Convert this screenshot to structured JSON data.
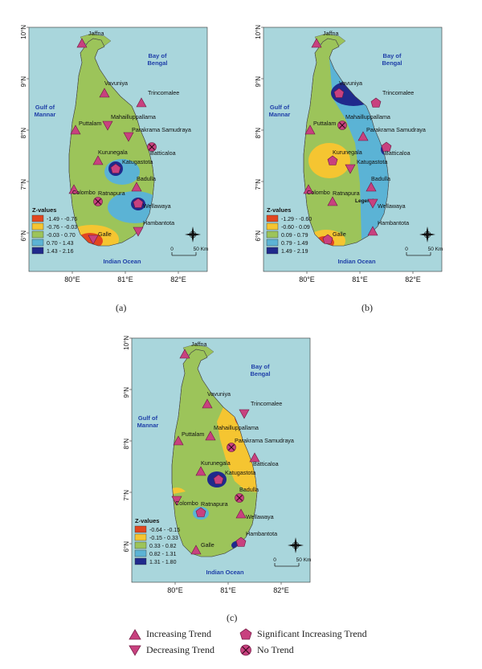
{
  "maps": [
    {
      "id": "a",
      "caption": "(a)",
      "lat_labels": [
        "10°N",
        "9°N",
        "8°N",
        "7°N",
        "6°N"
      ],
      "lon_labels": [
        "80°E",
        "81°E",
        "82°E"
      ],
      "legend_title": "Z-values",
      "legend": [
        {
          "label": "-1.49 - -0.76",
          "color": "#e2461f"
        },
        {
          "label": "-0.76 - -0.03",
          "color": "#f5c531"
        },
        {
          "label": "-0.03 - 0.70",
          "color": "#9cc45a"
        },
        {
          "label": "0.70 - 1.43",
          "color": "#5bb3d5"
        },
        {
          "label": "1.43 - 2.16",
          "color": "#202a8c"
        }
      ],
      "stations": [
        {
          "name": "Jaffna",
          "symbol": "increasing"
        },
        {
          "name": "Vavuniya",
          "symbol": "increasing"
        },
        {
          "name": "Trincomalee",
          "symbol": "increasing"
        },
        {
          "name": "Puttalam",
          "symbol": "increasing"
        },
        {
          "name": "Mahailluppallama",
          "symbol": "decreasing"
        },
        {
          "name": "Parakrama Samudraya",
          "symbol": "decreasing"
        },
        {
          "name": "Batticaloa",
          "symbol": "notrend"
        },
        {
          "name": "Kurunegala",
          "symbol": "increasing"
        },
        {
          "name": "Katugastota",
          "symbol": "sig_increasing"
        },
        {
          "name": "Colombo",
          "symbol": "increasing"
        },
        {
          "name": "Badulla",
          "symbol": "increasing"
        },
        {
          "name": "Ratnapura",
          "symbol": "notrend"
        },
        {
          "name": "Wellawaya",
          "symbol": "sig_increasing"
        },
        {
          "name": "Galle",
          "symbol": "decreasing"
        },
        {
          "name": "Hambantota",
          "symbol": "decreasing"
        }
      ]
    },
    {
      "id": "b",
      "caption": "(b)",
      "lat_labels": [
        "10°N",
        "9°N",
        "8°N",
        "7°N",
        "6°N"
      ],
      "lon_labels": [
        "80°E",
        "81°E",
        "82°E"
      ],
      "legend_title": "Z-values",
      "extra_label": "Legend",
      "legend": [
        {
          "label": "-1.29 - -0.60",
          "color": "#e2461f"
        },
        {
          "label": "-0.60 - 0.09",
          "color": "#f5c531"
        },
        {
          "label": "0.09 - 0.79",
          "color": "#9cc45a"
        },
        {
          "label": "0.79 - 1.49",
          "color": "#5bb3d5"
        },
        {
          "label": "1.49 - 2.19",
          "color": "#202a8c"
        }
      ],
      "stations": [
        {
          "name": "Jaffna",
          "symbol": "increasing"
        },
        {
          "name": "Vavuniya",
          "symbol": "sig_increasing"
        },
        {
          "name": "Trincomalee",
          "symbol": "sig_increasing"
        },
        {
          "name": "Puttalam",
          "symbol": "increasing"
        },
        {
          "name": "Mahailluppallama",
          "symbol": "notrend"
        },
        {
          "name": "Parakrama Samudraya",
          "symbol": "increasing"
        },
        {
          "name": "Batticaloa",
          "symbol": "sig_increasing"
        },
        {
          "name": "Kurunegala",
          "symbol": "sig_increasing"
        },
        {
          "name": "Katugastota",
          "symbol": "decreasing"
        },
        {
          "name": "Colombo",
          "symbol": "increasing"
        },
        {
          "name": "Badulla",
          "symbol": "increasing"
        },
        {
          "name": "Ratnapura",
          "symbol": "increasing"
        },
        {
          "name": "Wellawaya",
          "symbol": "decreasing"
        },
        {
          "name": "Galle",
          "symbol": "sig_increasing"
        },
        {
          "name": "Hambantota",
          "symbol": "increasing"
        }
      ]
    },
    {
      "id": "c",
      "caption": "(c)",
      "lat_labels": [
        "10°N",
        "9°N",
        "8°N",
        "7°N",
        "6°N"
      ],
      "lon_labels": [
        "80°E",
        "81°E",
        "82°E"
      ],
      "legend_title": "Z-values",
      "legend": [
        {
          "label": "-0.64 - -0.15",
          "color": "#e2461f"
        },
        {
          "label": "-0.15 - 0.33",
          "color": "#f5c531"
        },
        {
          "label": "0.33 - 0.82",
          "color": "#9cc45a"
        },
        {
          "label": "0.82 - 1.31",
          "color": "#5bb3d5"
        },
        {
          "label": "1.31 - 1.80",
          "color": "#202a8c"
        }
      ],
      "stations": [
        {
          "name": "Jaffna",
          "symbol": "increasing"
        },
        {
          "name": "Vavuniya",
          "symbol": "increasing"
        },
        {
          "name": "Trincomalee",
          "symbol": "decreasing"
        },
        {
          "name": "Puttalam",
          "symbol": "increasing"
        },
        {
          "name": "Mahailluppallama",
          "symbol": "increasing"
        },
        {
          "name": "Parakrama Samudraya",
          "symbol": "notrend"
        },
        {
          "name": "Batticaloa",
          "symbol": "increasing"
        },
        {
          "name": "Kurunegala",
          "symbol": "increasing"
        },
        {
          "name": "Katugastota",
          "symbol": "sig_increasing"
        },
        {
          "name": "Colombo",
          "symbol": "decreasing"
        },
        {
          "name": "Badulla",
          "symbol": "notrend"
        },
        {
          "name": "Ratnapura",
          "symbol": "sig_increasing"
        },
        {
          "name": "Wellawaya",
          "symbol": "increasing"
        },
        {
          "name": "Galle",
          "symbol": "increasing"
        },
        {
          "name": "Hambantota",
          "symbol": "sig_increasing"
        }
      ]
    }
  ],
  "water_labels": {
    "bay_line1": "Bay of",
    "bay_line2": "Bengal",
    "gulf_line1": "Gulf of",
    "gulf_line2": "Mannar",
    "ocean": "Indian Ocean"
  },
  "scale_bar": {
    "zero": "0",
    "km": "50 Km"
  },
  "colors": {
    "sea": "#a9d6dc",
    "land_base": "#9cc45a",
    "symbol": "#c8417f"
  },
  "symbol_legend": [
    {
      "key": "increasing",
      "label": "Increasing Trend"
    },
    {
      "key": "decreasing",
      "label": "Decreasing Trend"
    },
    {
      "key": "sig_increasing",
      "label": "Significant Increasing Trend"
    },
    {
      "key": "notrend",
      "label": "No Trend"
    }
  ]
}
